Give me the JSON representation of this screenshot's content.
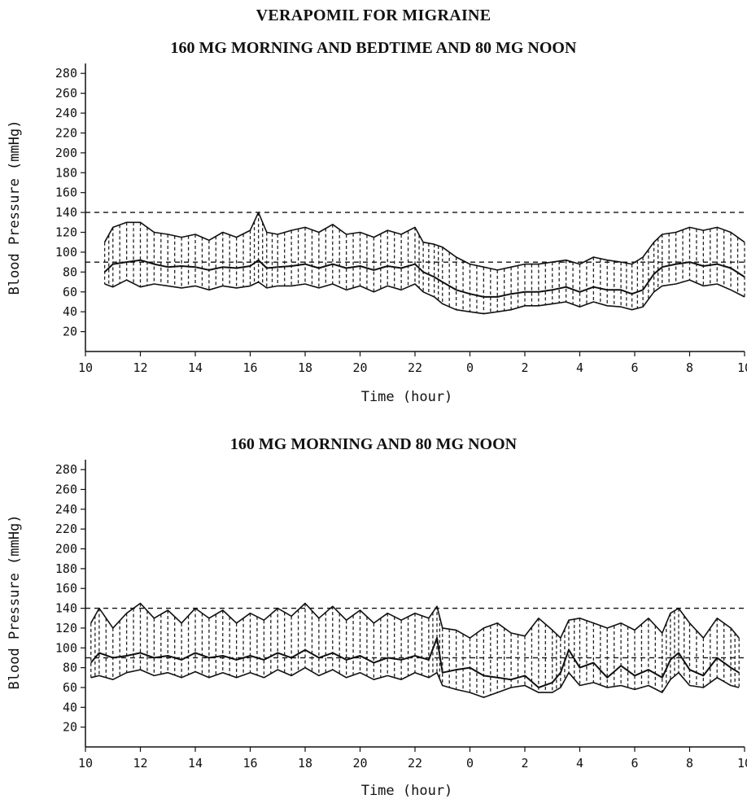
{
  "figure": {
    "title": "VERAPOMIL FOR MIGRAINE"
  },
  "chart_data": [
    {
      "type": "line",
      "title": "160 MG MORNING AND BEDTIME AND 80 MG NOON",
      "xlabel": "Time (hour)",
      "ylabel": "Blood Pressure (mmHg)",
      "x_tick_labels": [
        "10",
        "12",
        "14",
        "16",
        "18",
        "20",
        "22",
        "0",
        "2",
        "4",
        "6",
        "8",
        "10"
      ],
      "y_ticks": [
        20,
        40,
        60,
        80,
        100,
        120,
        140,
        160,
        180,
        200,
        220,
        240,
        260,
        280
      ],
      "ylim": [
        0,
        290
      ],
      "reference_lines": [
        140,
        90
      ],
      "x": [
        10.7,
        11,
        11.5,
        12,
        12.5,
        13,
        13.5,
        14,
        14.5,
        15,
        15.5,
        16,
        16.3,
        16.6,
        17,
        17.5,
        18,
        18.5,
        19,
        19.5,
        20,
        20.5,
        21,
        21.5,
        22,
        22.3,
        22.7,
        23,
        23.5,
        24,
        24.5,
        25,
        25.5,
        26,
        26.5,
        27,
        27.5,
        28,
        28.5,
        29,
        29.5,
        29.9,
        30.3,
        30.7,
        31,
        31.5,
        32,
        32.5,
        33,
        33.5,
        34
      ],
      "series": [
        {
          "role": "systolic",
          "values": [
            110,
            125,
            130,
            130,
            120,
            118,
            115,
            118,
            112,
            120,
            115,
            122,
            140,
            120,
            118,
            122,
            125,
            120,
            128,
            118,
            120,
            115,
            122,
            118,
            125,
            110,
            108,
            105,
            95,
            88,
            85,
            82,
            85,
            88,
            88,
            90,
            92,
            88,
            95,
            92,
            90,
            88,
            95,
            110,
            118,
            120,
            125,
            122,
            125,
            120,
            110
          ]
        },
        {
          "role": "mean",
          "values": [
            80,
            88,
            90,
            92,
            88,
            85,
            86,
            85,
            82,
            85,
            84,
            86,
            92,
            84,
            85,
            86,
            88,
            84,
            88,
            84,
            86,
            82,
            86,
            84,
            88,
            80,
            75,
            70,
            62,
            58,
            55,
            55,
            58,
            60,
            60,
            62,
            65,
            60,
            65,
            62,
            62,
            58,
            62,
            78,
            85,
            88,
            90,
            86,
            88,
            84,
            75
          ]
        },
        {
          "role": "diastolic",
          "values": [
            68,
            65,
            72,
            65,
            68,
            66,
            64,
            66,
            62,
            66,
            64,
            66,
            70,
            64,
            66,
            66,
            68,
            64,
            68,
            62,
            66,
            60,
            66,
            62,
            68,
            60,
            55,
            48,
            42,
            40,
            38,
            40,
            42,
            46,
            46,
            48,
            50,
            45,
            50,
            46,
            45,
            42,
            45,
            60,
            66,
            68,
            72,
            66,
            68,
            62,
            55
          ]
        }
      ]
    },
    {
      "type": "line",
      "title": "160 MG MORNING AND 80 MG NOON",
      "xlabel": "Time (hour)",
      "ylabel": "Blood Pressure (mmHg)",
      "x_tick_labels": [
        "10",
        "12",
        "14",
        "16",
        "18",
        "20",
        "22",
        "0",
        "2",
        "4",
        "6",
        "8",
        "10"
      ],
      "y_ticks": [
        20,
        40,
        60,
        80,
        100,
        120,
        140,
        160,
        180,
        200,
        220,
        240,
        260,
        280
      ],
      "ylim": [
        0,
        290
      ],
      "reference_lines": [
        140,
        90
      ],
      "x": [
        10.2,
        10.5,
        11,
        11.5,
        12,
        12.5,
        13,
        13.5,
        14,
        14.5,
        15,
        15.5,
        16,
        16.5,
        17,
        17.5,
        18,
        18.5,
        19,
        19.5,
        20,
        20.5,
        21,
        21.5,
        22,
        22.5,
        22.8,
        23,
        23.5,
        24,
        24.5,
        25,
        25.5,
        26,
        26.5,
        27,
        27.3,
        27.6,
        28,
        28.5,
        29,
        29.5,
        30,
        30.5,
        31,
        31.3,
        31.6,
        32,
        32.5,
        33,
        33.5,
        33.8
      ],
      "series": [
        {
          "role": "systolic",
          "values": [
            125,
            140,
            120,
            135,
            145,
            130,
            138,
            125,
            140,
            130,
            138,
            125,
            135,
            128,
            140,
            132,
            145,
            130,
            142,
            128,
            138,
            125,
            135,
            128,
            135,
            130,
            142,
            120,
            118,
            110,
            120,
            125,
            115,
            112,
            130,
            118,
            110,
            128,
            130,
            125,
            120,
            125,
            118,
            130,
            115,
            135,
            140,
            125,
            110,
            130,
            120,
            110
          ]
        },
        {
          "role": "mean",
          "values": [
            85,
            95,
            90,
            92,
            95,
            90,
            92,
            88,
            95,
            90,
            92,
            88,
            92,
            88,
            95,
            90,
            98,
            90,
            95,
            88,
            92,
            85,
            90,
            88,
            92,
            88,
            110,
            75,
            78,
            80,
            72,
            70,
            68,
            72,
            60,
            65,
            75,
            98,
            80,
            85,
            70,
            82,
            72,
            78,
            70,
            88,
            95,
            78,
            72,
            90,
            80,
            75
          ]
        },
        {
          "role": "diastolic",
          "values": [
            70,
            72,
            68,
            75,
            78,
            72,
            75,
            70,
            76,
            70,
            75,
            70,
            75,
            70,
            78,
            72,
            80,
            72,
            78,
            70,
            75,
            68,
            72,
            68,
            75,
            70,
            75,
            62,
            58,
            55,
            50,
            55,
            60,
            62,
            55,
            55,
            60,
            75,
            62,
            65,
            60,
            62,
            58,
            62,
            55,
            68,
            75,
            62,
            60,
            70,
            62,
            60
          ]
        }
      ]
    }
  ]
}
